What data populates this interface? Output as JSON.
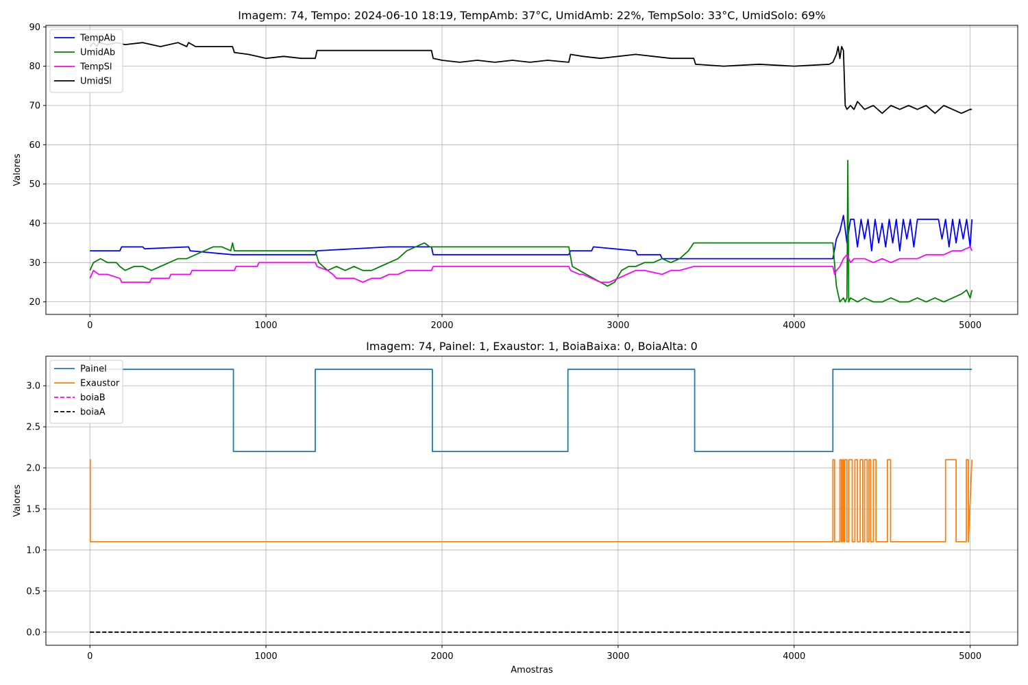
{
  "chart_data": [
    {
      "type": "line",
      "title": "Imagem: 74, Tempo: 2024-06-10 18:19, TempAmb: 37°C, UmidAmb: 22%, TempSolo: 33°C, UmidSolo: 69%",
      "xlabel": "",
      "ylabel": "Valores",
      "xlim": [
        -250,
        5270
      ],
      "ylim": [
        16.8,
        90.4
      ],
      "xticks": [
        0,
        1000,
        2000,
        3000,
        4000,
        5000
      ],
      "yticks": [
        20,
        30,
        40,
        50,
        60,
        70,
        80,
        90
      ],
      "grid": true,
      "legend_position": "top-left",
      "series": [
        {
          "name": "TempAb",
          "color": "#0000ff",
          "dash": "",
          "x": [
            0,
            170,
            180,
            300,
            310,
            560,
            570,
            810,
            820,
            1280,
            1290,
            1700,
            1710,
            1940,
            1950,
            2720,
            2730,
            2850,
            2860,
            3100,
            3110,
            3240,
            3250,
            3420,
            3430,
            4220,
            4240,
            4260,
            4280,
            4300,
            4320,
            4340,
            4360,
            4380,
            4400,
            4420,
            4440,
            4460,
            4480,
            4500,
            4520,
            4540,
            4560,
            4580,
            4600,
            4620,
            4640,
            4660,
            4680,
            4700,
            4720,
            4740,
            4760,
            4780,
            4800,
            4820,
            4840,
            4860,
            4880,
            4900,
            4920,
            4940,
            4960,
            4980,
            5000,
            5010
          ],
          "y": [
            33,
            33,
            34,
            34,
            33.5,
            34,
            33,
            32,
            32,
            32,
            33,
            34,
            34,
            34,
            32,
            32,
            33,
            33,
            34,
            33,
            32,
            32,
            31,
            31,
            31,
            31,
            36,
            38,
            42,
            35,
            41,
            41,
            34,
            41,
            36,
            41,
            33,
            41,
            35,
            40,
            34,
            41,
            35,
            41,
            33,
            41,
            36,
            41,
            34,
            41,
            41,
            41,
            41,
            41,
            41,
            41,
            36,
            41,
            34,
            41,
            35,
            41,
            36,
            41,
            34,
            41
          ]
        },
        {
          "name": "UmidAb",
          "color": "#008000",
          "dash": "",
          "x": [
            0,
            20,
            60,
            100,
            150,
            170,
            200,
            250,
            300,
            350,
            400,
            450,
            500,
            550,
            600,
            650,
            700,
            750,
            800,
            810,
            820,
            1280,
            1300,
            1350,
            1400,
            1450,
            1500,
            1550,
            1600,
            1650,
            1700,
            1750,
            1800,
            1850,
            1900,
            1930,
            1950,
            2720,
            2740,
            2780,
            2820,
            2860,
            2900,
            2940,
            2980,
            3020,
            3060,
            3100,
            3150,
            3200,
            3250,
            3300,
            3350,
            3400,
            3430,
            3440,
            4220,
            4240,
            4260,
            4280,
            4290,
            4300,
            4305,
            4310,
            4320,
            4360,
            4400,
            4450,
            4500,
            4550,
            4600,
            4650,
            4700,
            4750,
            4800,
            4850,
            4900,
            4950,
            4980,
            5000,
            5010
          ],
          "y": [
            28,
            30,
            31,
            30,
            30,
            29,
            28,
            29,
            29,
            28,
            29,
            30,
            31,
            31,
            32,
            33,
            34,
            34,
            33,
            35,
            33,
            33,
            30,
            28,
            29,
            28,
            29,
            28,
            28,
            29,
            30,
            31,
            33,
            34,
            35,
            34,
            34,
            34,
            29,
            28,
            27,
            26,
            25,
            24,
            25,
            28,
            29,
            29,
            30,
            30,
            31,
            30,
            31,
            33,
            35,
            35,
            35,
            24,
            20,
            21,
            20,
            21,
            56,
            20,
            21,
            20,
            21,
            20,
            20,
            21,
            20,
            20,
            21,
            20,
            21,
            20,
            21,
            22,
            23,
            21,
            23
          ]
        },
        {
          "name": "TempSl",
          "color": "#ff00ff",
          "dash": "",
          "x": [
            0,
            10,
            20,
            50,
            100,
            170,
            180,
            300,
            340,
            350,
            450,
            460,
            570,
            580,
            700,
            820,
            830,
            950,
            960,
            1280,
            1290,
            1350,
            1380,
            1400,
            1500,
            1550,
            1600,
            1650,
            1700,
            1750,
            1800,
            1850,
            1940,
            1950,
            2700,
            2720,
            2730,
            2780,
            2800,
            2850,
            2900,
            2950,
            3000,
            3050,
            3100,
            3150,
            3250,
            3300,
            3350,
            3430,
            4220,
            4230,
            4240,
            4260,
            4280,
            4300,
            4320,
            4340,
            4400,
            4450,
            4500,
            4550,
            4600,
            4650,
            4700,
            4750,
            4800,
            4850,
            4900,
            4950,
            5000,
            5010
          ],
          "y": [
            26,
            27,
            28,
            27,
            27,
            26,
            25,
            25,
            25,
            26,
            26,
            27,
            27,
            28,
            28,
            28,
            29,
            29,
            30,
            30,
            29,
            28,
            27,
            26,
            26,
            25,
            26,
            26,
            27,
            27,
            28,
            28,
            28,
            29,
            29,
            29,
            28,
            27,
            27,
            26,
            25,
            25,
            26,
            27,
            28,
            28,
            27,
            28,
            28,
            29,
            29,
            27,
            28,
            29,
            31,
            32,
            30,
            31,
            31,
            30,
            31,
            30,
            31,
            31,
            31,
            32,
            32,
            32,
            33,
            33,
            34,
            33
          ]
        },
        {
          "name": "UmidSl",
          "color": "#000000",
          "dash": "",
          "x": [
            0,
            20,
            40,
            50,
            100,
            150,
            200,
            300,
            400,
            500,
            550,
            560,
            600,
            700,
            810,
            820,
            900,
            950,
            1000,
            1100,
            1200,
            1280,
            1290,
            1940,
            1950,
            2000,
            2100,
            2200,
            2300,
            2400,
            2500,
            2600,
            2720,
            2730,
            2800,
            2900,
            3000,
            3100,
            3200,
            3300,
            3430,
            3440,
            3600,
            3800,
            4000,
            4200,
            4220,
            4240,
            4250,
            4260,
            4270,
            4280,
            4290,
            4300,
            4320,
            4340,
            4360,
            4400,
            4450,
            4500,
            4550,
            4600,
            4650,
            4700,
            4750,
            4800,
            4850,
            4900,
            4950,
            5000,
            5010
          ],
          "y": [
            85,
            86,
            85,
            86,
            85.5,
            86,
            85.5,
            86,
            85,
            86,
            85,
            86,
            85,
            85,
            85,
            83.5,
            83,
            82.5,
            82,
            82.5,
            82,
            82,
            84,
            84,
            82,
            81.5,
            81,
            81.5,
            81,
            81.5,
            81,
            81.5,
            81,
            83,
            82.5,
            82,
            82.5,
            83,
            82.5,
            82,
            82,
            80.5,
            80,
            80.5,
            80,
            80.5,
            81,
            83,
            85,
            82,
            85,
            84,
            70,
            69,
            70,
            69,
            71,
            69,
            70,
            68,
            70,
            69,
            70,
            69,
            70,
            68,
            70,
            69,
            68,
            69,
            69
          ]
        }
      ]
    },
    {
      "type": "line",
      "title": "Imagem: 74, Painel: 1, Exaustor: 1, BoiaBaixa: 0, BoiaAlta: 0",
      "xlabel": "Amostras",
      "ylabel": "Valores",
      "xlim": [
        -250,
        5270
      ],
      "ylim": [
        -0.16,
        3.36
      ],
      "xticks": [
        0,
        1000,
        2000,
        3000,
        4000,
        5000
      ],
      "yticks": [
        0.0,
        0.5,
        1.0,
        1.5,
        2.0,
        2.5,
        3.0
      ],
      "ytick_labels": [
        "0.0",
        "0.5",
        "1.0",
        "1.5",
        "2.0",
        "2.5",
        "3.0"
      ],
      "grid": true,
      "legend_position": "top-left",
      "series": [
        {
          "name": "Painel",
          "color": "#1f77b4",
          "dash": "",
          "x": [
            0,
            815,
            815,
            1280,
            1280,
            1945,
            1945,
            2715,
            2715,
            3435,
            3435,
            4220,
            4220,
            5010
          ],
          "y": [
            3.2,
            3.2,
            2.2,
            2.2,
            3.2,
            3.2,
            2.2,
            2.2,
            3.2,
            3.2,
            2.2,
            2.2,
            3.2,
            3.2
          ]
        },
        {
          "name": "Exaustor",
          "color": "#ff7f0e",
          "dash": "",
          "x": [
            0,
            2,
            2,
            4220,
            4220,
            4230,
            4230,
            4260,
            4260,
            4268,
            4268,
            4275,
            4275,
            4282,
            4282,
            4288,
            4288,
            4300,
            4300,
            4310,
            4310,
            4330,
            4330,
            4345,
            4345,
            4360,
            4360,
            4375,
            4375,
            4390,
            4390,
            4400,
            4400,
            4415,
            4415,
            4425,
            4425,
            4435,
            4435,
            4450,
            4450,
            4465,
            4465,
            4530,
            4530,
            4548,
            4548,
            4860,
            4860,
            4920,
            4920,
            4978,
            4978,
            4990,
            4990,
            5010
          ],
          "y": [
            2.1,
            2.1,
            1.1,
            1.1,
            2.1,
            2.1,
            1.1,
            1.1,
            2.1,
            2.1,
            1.1,
            1.1,
            2.1,
            2.1,
            1.1,
            1.1,
            2.1,
            2.1,
            1.1,
            1.1,
            2.1,
            2.1,
            1.1,
            1.1,
            2.1,
            2.1,
            1.1,
            1.1,
            2.1,
            2.1,
            1.1,
            1.1,
            2.1,
            2.1,
            1.1,
            1.1,
            2.1,
            2.1,
            1.1,
            1.1,
            2.1,
            2.1,
            1.1,
            1.1,
            2.1,
            2.1,
            1.1,
            1.1,
            2.1,
            2.1,
            1.1,
            1.1,
            2.1,
            2.1,
            1.1,
            2.1
          ]
        },
        {
          "name": "boiaB",
          "color": "#ff00ff",
          "dash": "6,3",
          "x": [
            0,
            5010
          ],
          "y": [
            0,
            0
          ]
        },
        {
          "name": "boiaA",
          "color": "#000000",
          "dash": "6,3",
          "x": [
            0,
            5010
          ],
          "y": [
            0,
            0
          ]
        }
      ]
    }
  ]
}
